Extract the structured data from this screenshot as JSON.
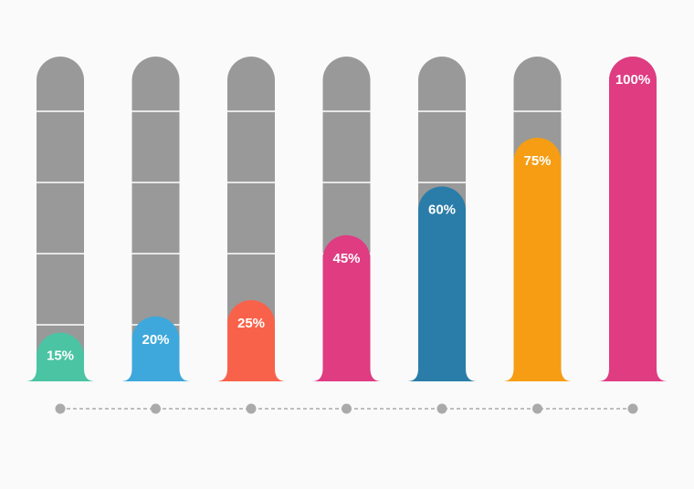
{
  "chart_data": {
    "type": "bar",
    "values": [
      15,
      20,
      25,
      45,
      60,
      75,
      100
    ],
    "value_labels": [
      "15%",
      "20%",
      "25%",
      "45%",
      "60%",
      "75%",
      "100%"
    ],
    "colors": [
      "#4bc4a3",
      "#3ea8dc",
      "#f9624a",
      "#df3c82",
      "#2a7da8",
      "#f69d14",
      "#df3c82"
    ]
  }
}
